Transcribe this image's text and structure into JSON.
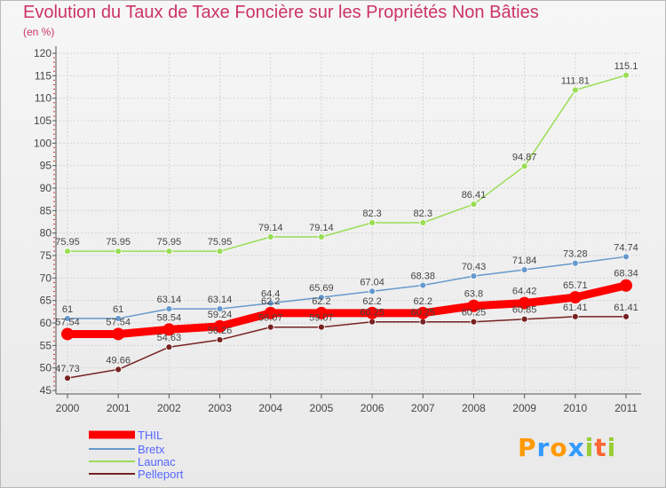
{
  "chart_data": {
    "type": "line",
    "title": "Evolution du Taux de Taxe Foncière sur les Propriétés Non Bâties",
    "subtitle": "(en %)",
    "x": [
      "2000",
      "2001",
      "2002",
      "2003",
      "2004",
      "2005",
      "2006",
      "2007",
      "2008",
      "2009",
      "2010",
      "2011"
    ],
    "ylim": [
      45,
      120
    ],
    "yticks": [
      45,
      50,
      55,
      60,
      65,
      70,
      75,
      80,
      85,
      90,
      95,
      100,
      105,
      110,
      115,
      120
    ],
    "grid": true,
    "legend_position": "bottom-left",
    "series": [
      {
        "name": "THIL",
        "color": "#ff0000",
        "values": [
          57.54,
          57.54,
          58.54,
          59.24,
          62.2,
          62.2,
          62.2,
          62.2,
          63.8,
          64.42,
          65.71,
          68.34
        ],
        "labels": [
          "57.54",
          "57.54",
          "58.54",
          "59.24",
          "62.2",
          "62.2",
          "62.2",
          "62.2",
          "63.8",
          "64.42",
          "65.71",
          "68.34"
        ]
      },
      {
        "name": "Bretx",
        "color": "#6699cc",
        "values": [
          61,
          61,
          63.14,
          63.14,
          64.4,
          65.69,
          67.04,
          68.38,
          70.43,
          71.84,
          73.28,
          74.74
        ],
        "labels": [
          "61",
          "61",
          "63.14",
          "63.14",
          "64.4",
          "65.69",
          "67.04",
          "68.38",
          "70.43",
          "71.84",
          "73.28",
          "74.74"
        ]
      },
      {
        "name": "Launac",
        "color": "#99dd55",
        "values": [
          75.95,
          75.95,
          75.95,
          75.95,
          79.14,
          79.14,
          82.3,
          82.3,
          86.41,
          94.87,
          111.81,
          115.1
        ],
        "labels": [
          "75.95",
          "75.95",
          "75.95",
          "75.95",
          "79.14",
          "79.14",
          "82.3",
          "82.3",
          "86.41",
          "94.87",
          "111.81",
          "115.1"
        ]
      },
      {
        "name": "Pelleport",
        "color": "#772222",
        "values": [
          47.73,
          49.66,
          54.63,
          56.26,
          59.07,
          59.07,
          60.25,
          60.25,
          60.25,
          60.85,
          61.41,
          61.41
        ],
        "labels": [
          "47.73",
          "49.66",
          "54.63",
          "56.26",
          "59.07",
          "59.07",
          "60.25",
          "60.25",
          "60.25",
          "60.85",
          "61.41",
          "61.41"
        ]
      }
    ]
  },
  "logo": {
    "letters": [
      "P",
      "r",
      "o",
      "x",
      "i",
      "t",
      "i"
    ],
    "colors": [
      "#ff9900",
      "#3399ff",
      "#ff9900",
      "#3399ff",
      "#99cc33",
      "#ff6633",
      "#99cc33"
    ]
  }
}
